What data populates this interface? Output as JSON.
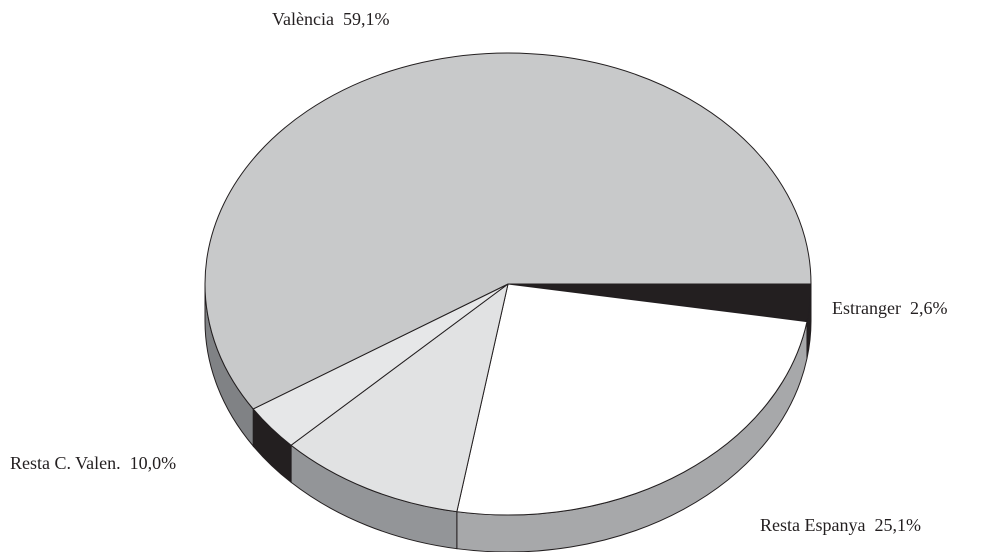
{
  "chart_data": {
    "type": "pie3d",
    "categories": [
      "Estranger",
      "Resta Espanya",
      "Resta C. Valen.",
      null,
      "València"
    ],
    "values": [
      2.6,
      25.1,
      10.0,
      3.2,
      59.1
    ],
    "value_labels": [
      "2,6%",
      "25,1%",
      "10,0%",
      null,
      "59,1%"
    ],
    "colors": [
      "#231f20",
      "#ffffff",
      "#e1e2e3",
      "#e6e7e8",
      "#c8c9ca"
    ],
    "side_colors": [
      "#231f20",
      "#a7a8aa",
      "#939598",
      "#231f20",
      "#808285"
    ]
  }
}
